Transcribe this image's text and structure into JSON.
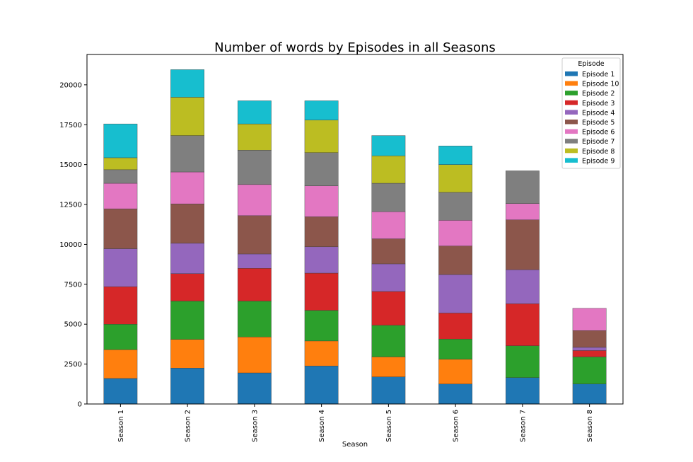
{
  "chart_data": {
    "type": "bar",
    "stacked": true,
    "title": "Number of words by Episodes in all Seasons",
    "xlabel": "Season",
    "ylabel": "",
    "ylim": [
      0,
      21900
    ],
    "yticks": [
      0,
      2500,
      5000,
      7500,
      10000,
      12500,
      15000,
      17500,
      20000
    ],
    "categories": [
      "Season 1",
      "Season 2",
      "Season 3",
      "Season 4",
      "Season 5",
      "Season 6",
      "Season 7",
      "Season 8"
    ],
    "legend": {
      "title": "Episode",
      "placement": "top-right"
    },
    "grid": false,
    "series": [
      {
        "name": "Episode 1",
        "color": "#1f77b4",
        "values": [
          1600,
          2250,
          1950,
          2380,
          1700,
          1250,
          1650,
          1250
        ]
      },
      {
        "name": "Episode 10",
        "color": "#ff7f0e",
        "values": [
          1800,
          1800,
          2250,
          1570,
          1250,
          1550,
          0,
          0
        ]
      },
      {
        "name": "Episode 2",
        "color": "#2ca02c",
        "values": [
          1600,
          2400,
          2250,
          1920,
          1980,
          1270,
          2000,
          1700
        ]
      },
      {
        "name": "Episode 3",
        "color": "#d62728",
        "values": [
          2350,
          1720,
          2050,
          2330,
          2120,
          1630,
          2630,
          400
        ]
      },
      {
        "name": "Episode 4",
        "color": "#9467bd",
        "values": [
          2380,
          1900,
          900,
          1650,
          1730,
          2410,
          2130,
          200
        ]
      },
      {
        "name": "Episode 5",
        "color": "#8c564b",
        "values": [
          2500,
          2470,
          2400,
          1880,
          1570,
          1790,
          3130,
          1050
        ]
      },
      {
        "name": "Episode 6",
        "color": "#e377c2",
        "values": [
          1600,
          2000,
          1950,
          1940,
          1700,
          1610,
          1020,
          1400
        ]
      },
      {
        "name": "Episode 7",
        "color": "#7f7f7f",
        "values": [
          850,
          2280,
          2150,
          2080,
          1780,
          1750,
          2050,
          0
        ]
      },
      {
        "name": "Episode 8",
        "color": "#bcbd22",
        "values": [
          750,
          2400,
          1650,
          2040,
          1720,
          1740,
          0,
          0
        ]
      },
      {
        "name": "Episode 9",
        "color": "#17becf",
        "values": [
          2120,
          1730,
          1450,
          1210,
          1270,
          1170,
          0,
          0
        ]
      }
    ]
  }
}
